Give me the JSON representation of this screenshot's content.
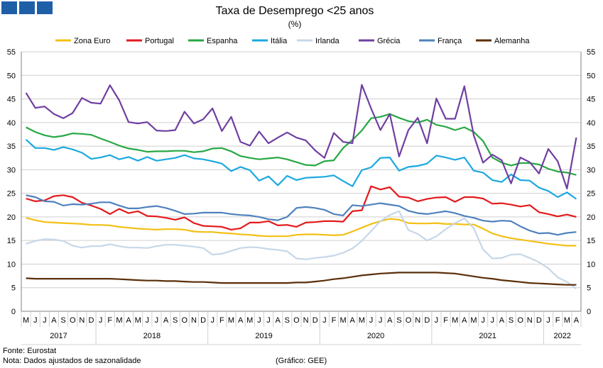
{
  "chart_data": {
    "type": "line",
    "title": "Taxa de Desemprego <25 anos",
    "subtitle": "(%)",
    "ylim": [
      0,
      55
    ],
    "yticks": [
      0,
      5,
      10,
      15,
      20,
      25,
      30,
      35,
      40,
      45,
      50,
      55
    ],
    "legend_position": "top",
    "grid": "horizontal",
    "x": [
      "M",
      "J",
      "J",
      "A",
      "S",
      "O",
      "N",
      "D",
      "J",
      "F",
      "M",
      "A",
      "M",
      "J",
      "J",
      "A",
      "S",
      "O",
      "N",
      "D",
      "J",
      "F",
      "M",
      "A",
      "M",
      "J",
      "J",
      "A",
      "S",
      "O",
      "N",
      "D",
      "J",
      "F",
      "M",
      "A",
      "M",
      "J",
      "J",
      "A",
      "S",
      "O",
      "N",
      "D",
      "J",
      "F",
      "M",
      "A",
      "M",
      "J",
      "J",
      "A",
      "S",
      "O",
      "N",
      "D",
      "J",
      "F",
      "M",
      "A"
    ],
    "years": [
      {
        "label": "2017",
        "start": 0,
        "end": 7
      },
      {
        "label": "2018",
        "start": 8,
        "end": 19
      },
      {
        "label": "2019",
        "start": 20,
        "end": 31
      },
      {
        "label": "2020",
        "start": 32,
        "end": 43
      },
      {
        "label": "2021",
        "start": 44,
        "end": 55
      },
      {
        "label": "2022",
        "start": 56,
        "end": 59
      }
    ],
    "series": [
      {
        "name": "Zona Euro",
        "color": "#f2c014",
        "values": [
          19.8,
          19.3,
          18.9,
          18.8,
          18.7,
          18.6,
          18.5,
          18.3,
          18.3,
          18.2,
          17.9,
          17.7,
          17.5,
          17.4,
          17.3,
          17.4,
          17.4,
          17.3,
          16.9,
          16.8,
          16.8,
          16.6,
          16.5,
          16.3,
          16.2,
          16.0,
          15.9,
          15.9,
          15.9,
          16.2,
          16.3,
          16.3,
          16.2,
          16.1,
          16.2,
          16.9,
          17.7,
          18.5,
          19.1,
          19.6,
          19.4,
          18.7,
          18.6,
          18.6,
          18.7,
          18.5,
          18.5,
          18.4,
          18.4,
          17.5,
          16.5,
          15.9,
          15.5,
          15.2,
          14.9,
          14.6,
          14.3,
          14.1,
          13.9,
          13.9
        ]
      },
      {
        "name": "Portugal",
        "color": "#e31a1c",
        "values": [
          23.9,
          23.3,
          23.5,
          24.4,
          24.6,
          24.2,
          23.0,
          22.4,
          21.7,
          20.6,
          21.7,
          20.8,
          21.2,
          20.2,
          20.1,
          19.8,
          19.4,
          19.9,
          18.7,
          18.1,
          18.0,
          17.9,
          17.3,
          17.6,
          18.8,
          18.8,
          19.1,
          18.2,
          18.3,
          17.9,
          18.8,
          18.9,
          19.1,
          19.1,
          19.0,
          21.2,
          21.4,
          26.5,
          25.8,
          26.3,
          24.3,
          24.1,
          23.3,
          23.8,
          24.1,
          24.2,
          23.2,
          24.2,
          24.2,
          23.9,
          22.8,
          22.9,
          22.6,
          22.2,
          22.5,
          21.0,
          20.6,
          20.1,
          20.5,
          20.0
        ]
      },
      {
        "name": "Espanha",
        "color": "#27a844",
        "values": [
          39.0,
          38.0,
          37.3,
          36.9,
          37.2,
          37.7,
          37.6,
          37.4,
          36.6,
          35.9,
          35.1,
          34.5,
          34.2,
          33.8,
          33.9,
          33.9,
          34.0,
          34.0,
          33.7,
          33.9,
          34.5,
          34.6,
          33.9,
          32.9,
          32.5,
          32.2,
          32.4,
          32.6,
          32.2,
          31.6,
          31.0,
          30.9,
          31.8,
          32.0,
          34.6,
          36.3,
          38.3,
          40.9,
          41.2,
          41.8,
          41.0,
          40.3,
          40.0,
          40.6,
          39.5,
          39.1,
          38.4,
          39.0,
          38.0,
          36.1,
          32.6,
          31.5,
          30.9,
          31.4,
          31.4,
          31.1,
          30.2,
          29.6,
          29.4,
          28.9
        ]
      },
      {
        "name": "Itália",
        "color": "#1ba9df",
        "values": [
          36.4,
          34.6,
          34.6,
          34.2,
          34.8,
          34.3,
          33.6,
          32.3,
          32.6,
          33.1,
          32.2,
          32.7,
          31.9,
          32.7,
          31.9,
          32.2,
          32.5,
          33.1,
          32.4,
          32.2,
          31.8,
          31.3,
          29.7,
          30.6,
          29.9,
          27.7,
          28.6,
          26.7,
          28.7,
          27.8,
          28.3,
          28.4,
          28.5,
          28.8,
          27.6,
          26.5,
          29.9,
          30.5,
          32.5,
          32.6,
          29.8,
          30.6,
          30.8,
          31.3,
          33.0,
          32.6,
          32.1,
          32.6,
          29.8,
          29.4,
          27.8,
          27.4,
          29.0,
          27.8,
          27.7,
          26.2,
          25.5,
          24.2,
          25.2,
          23.8
        ]
      },
      {
        "name": "Irlanda",
        "color": "#c6d7e8",
        "values": [
          14.3,
          14.9,
          15.3,
          15.2,
          14.9,
          13.9,
          13.5,
          13.8,
          13.8,
          14.2,
          13.8,
          13.5,
          13.5,
          13.4,
          13.8,
          14.1,
          14.1,
          13.9,
          13.7,
          13.4,
          12.0,
          12.2,
          12.8,
          13.4,
          13.6,
          13.5,
          13.2,
          13.0,
          12.7,
          11.2,
          11.0,
          11.3,
          11.5,
          11.8,
          12.4,
          13.3,
          14.9,
          17.0,
          19.1,
          20.4,
          21.2,
          17.2,
          16.4,
          15.0,
          15.9,
          17.4,
          18.7,
          19.7,
          17.6,
          13.1,
          11.2,
          11.3,
          12.0,
          12.1,
          11.3,
          10.4,
          9.1,
          7.2,
          6.2,
          4.8
        ]
      },
      {
        "name": "Grécia",
        "color": "#6f3fa0",
        "values": [
          46.3,
          43.1,
          43.4,
          41.8,
          40.9,
          42.0,
          45.2,
          44.2,
          44.0,
          47.9,
          44.7,
          40.1,
          39.8,
          40.1,
          38.3,
          38.2,
          38.4,
          42.3,
          39.8,
          40.7,
          43.0,
          38.2,
          41.2,
          35.9,
          35.1,
          38.1,
          35.6,
          36.8,
          37.9,
          36.8,
          36.2,
          34.1,
          32.5,
          37.8,
          35.9,
          35.6,
          48.0,
          43.0,
          38.4,
          41.8,
          32.8,
          38.4,
          41.0,
          35.6,
          45.1,
          40.8,
          40.8,
          47.7,
          37.3,
          31.5,
          33.2,
          32.0,
          27.1,
          32.6,
          31.6,
          29.2,
          34.4,
          31.8,
          26.0,
          36.8
        ]
      },
      {
        "name": "França",
        "color": "#4f81bd",
        "values": [
          24.6,
          24.2,
          23.3,
          23.2,
          22.4,
          22.7,
          22.6,
          22.8,
          23.1,
          23.1,
          22.4,
          21.8,
          21.8,
          22.1,
          22.3,
          21.9,
          21.3,
          20.6,
          20.7,
          20.9,
          20.9,
          20.9,
          20.6,
          20.4,
          20.3,
          20.0,
          19.5,
          19.3,
          20.0,
          21.9,
          22.1,
          21.9,
          21.5,
          20.6,
          20.3,
          22.5,
          22.3,
          22.6,
          22.9,
          22.6,
          22.3,
          21.3,
          20.8,
          20.6,
          20.9,
          21.2,
          20.8,
          20.2,
          19.8,
          19.2,
          19.0,
          19.2,
          19.1,
          18.0,
          17.1,
          16.5,
          16.6,
          16.2,
          16.6,
          16.8
        ]
      },
      {
        "name": "Alemanha",
        "color": "#5a2f0a",
        "values": [
          7.0,
          6.9,
          6.9,
          6.9,
          6.9,
          6.9,
          6.9,
          6.9,
          6.9,
          6.9,
          6.8,
          6.7,
          6.6,
          6.5,
          6.5,
          6.4,
          6.4,
          6.3,
          6.2,
          6.2,
          6.1,
          6.0,
          6.0,
          6.0,
          6.0,
          6.0,
          6.0,
          6.0,
          6.0,
          6.1,
          6.1,
          6.3,
          6.5,
          6.8,
          7.0,
          7.3,
          7.6,
          7.8,
          8.0,
          8.1,
          8.2,
          8.2,
          8.2,
          8.2,
          8.2,
          8.1,
          8.0,
          7.7,
          7.4,
          7.1,
          6.9,
          6.6,
          6.4,
          6.2,
          6.0,
          5.9,
          5.8,
          5.7,
          5.6,
          5.6
        ]
      }
    ]
  },
  "footer": {
    "source": "Fonte: Eurostat",
    "note": "Nota: Dados ajustados de sazonalidade",
    "credit": "(Gráfico: GEE)"
  },
  "colors": {
    "logo": "#1f5fa8",
    "grid": "#cfcfcf",
    "axis": "#808080"
  }
}
